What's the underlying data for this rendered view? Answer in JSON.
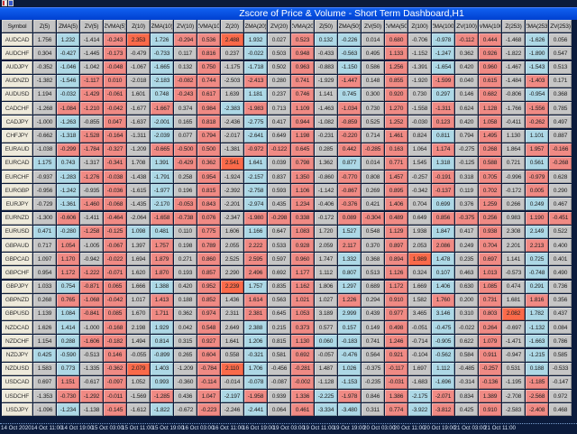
{
  "window": {
    "title": "Zscore of Price & Volume - Short Term Dashboard,H1"
  },
  "palette": {
    "g": "#c6c6c6",
    "b": "#add8e6",
    "r": "#f08a84",
    "o": "#fa6a4a"
  },
  "table": {
    "headers": [
      "Symbol",
      "Z(5)",
      "ZMA(5)",
      "ZV(5)",
      "ZVMA(5)",
      "Z(10)",
      "ZMA(10)",
      "ZV(10)",
      "ZVMA(10)",
      "Z(20)",
      "ZMA(20)",
      "ZV(20)",
      "ZVMA(20)",
      "Z(50)",
      "ZMA(50)",
      "ZV(50)",
      "ZVMA(50)",
      "Z(100)",
      "ZMA(100)",
      "ZV(100)",
      "ZVMA(100)",
      "Z(253)",
      "ZMA(253)",
      "ZV(253)"
    ],
    "rows": [
      {
        "symbol": "AUDCAD",
        "values": [
          "1.756",
          "1.232",
          "-1.414",
          "-0.243",
          "2.353",
          "1.726",
          "-0.294",
          "0.536",
          "2.488",
          "1.932",
          "0.027",
          "0.523",
          "0.132",
          "-0.226",
          "0.014",
          "0.680",
          "-0.706",
          "-0.978",
          "-0.112",
          "0.444",
          "-1.468",
          "-1.626",
          "0.056"
        ],
        "colors": "gbgrobrrobgrbbgrgbrrgbg"
      },
      {
        "symbol": "AUDCHF",
        "values": [
          "0.304",
          "-0.427",
          "-1.445",
          "-0.173",
          "-0.479",
          "-0.733",
          "0.117",
          "0.816",
          "0.237",
          "-0.022",
          "0.503",
          "0.948",
          "-0.433",
          "-0.563",
          "0.495",
          "1.133",
          "-1.152",
          "-1.247",
          "0.362",
          "0.926",
          "-1.822",
          "-1.890",
          "0.547"
        ],
        "colors": "gbgrgbgrgbgrgbgrgbgrgbg"
      },
      {
        "symbol": "AUDJPY",
        "values": [
          "-0.352",
          "-1.046",
          "-1.042",
          "-0.048",
          "-1.067",
          "-1.665",
          "0.132",
          "0.750",
          "-1.175",
          "-1.718",
          "0.502",
          "0.963",
          "-0.883",
          "-1.150",
          "0.586",
          "1.256",
          "-1.391",
          "-1.654",
          "0.420",
          "0.960",
          "-1.467",
          "-1.543",
          "0.513"
        ],
        "colors": "gbgrgbgrgbgrgbgrgbgrgbg"
      },
      {
        "symbol": "AUDNZD",
        "values": [
          "-1.382",
          "-1.546",
          "-1.117",
          "0.010",
          "-2.018",
          "-2.183",
          "-0.082",
          "0.744",
          "-2.503",
          "-2.413",
          "0.280",
          "0.741",
          "-1.929",
          "-1.447",
          "0.148",
          "0.855",
          "-1.920",
          "-1.599",
          "0.040",
          "0.615",
          "-1.484",
          "-1.403",
          "0.171"
        ],
        "colors": "gbrrgbrrgrgrgrgrgrgrgrg"
      },
      {
        "symbol": "AUDUSD",
        "values": [
          "1.194",
          "-0.032",
          "-1.429",
          "-0.061",
          "1.601",
          "0.748",
          "-0.243",
          "0.617",
          "1.639",
          "1.181",
          "0.237",
          "0.746",
          "1.141",
          "0.745",
          "0.300",
          "0.920",
          "0.730",
          "0.297",
          "0.146",
          "0.682",
          "-0.806",
          "-0.954",
          "0.368"
        ],
        "colors": "gbrrgbrrgbgrgbgrgbgrgbg"
      },
      {
        "symbol": "CADCHF",
        "values": [
          "-1.268",
          "-1.084",
          "-1.210",
          "-0.042",
          "-1.677",
          "-1.667",
          "0.374",
          "0.984",
          "-2.383",
          "-1.983",
          "0.713",
          "1.109",
          "-1.463",
          "-1.034",
          "0.730",
          "1.270",
          "-1.558",
          "-1.311",
          "0.624",
          "1.128",
          "-1.766",
          "-1.556",
          "0.785"
        ],
        "colors": "grrrgrgrbrgrgrgrgrgrgrg"
      },
      {
        "symbol": "CADJPY",
        "values": [
          "-1.000",
          "-1.263",
          "-0.855",
          "0.047",
          "-1.637",
          "-2.001",
          "0.165",
          "0.818",
          "-2.436",
          "-2.775",
          "0.417",
          "0.944",
          "-1.082",
          "-0.859",
          "0.525",
          "1.252",
          "-0.030",
          "0.123",
          "0.420",
          "1.058",
          "-0.411",
          "-0.262",
          "0.497"
        ],
        "colors": "gbgrgbgrgbgrgrgrgrgrgrg"
      },
      {
        "symbol": "CHFJPY",
        "values": [
          "-0.662",
          "-1.318",
          "-1.528",
          "-0.164",
          "-1.311",
          "-2.039",
          "0.077",
          "0.794",
          "-2.017",
          "-2.641",
          "0.649",
          "1.198",
          "-0.231",
          "-0.220",
          "0.714",
          "1.461",
          "0.824",
          "0.811",
          "0.794",
          "1.495",
          "1.130",
          "1.101",
          "0.887"
        ],
        "colors": "gbrrgbgrgbgrgrgrgbgrgbg"
      },
      {
        "symbol": "EURAUD",
        "values": [
          "-1.038",
          "-0.299",
          "-1.784",
          "-0.327",
          "-1.209",
          "-0.665",
          "-0.500",
          "0.500",
          "-1.381",
          "-0.972",
          "-0.122",
          "0.645",
          "0.285",
          "0.442",
          "-0.285",
          "0.163",
          "1.064",
          "1.174",
          "-0.275",
          "0.268",
          "1.864",
          "1.957",
          "-0.166"
        ],
        "colors": "grrrgrrrgrrrgrrrgrgrgrr"
      },
      {
        "symbol": "EURCAD",
        "values": [
          "1.175",
          "0.743",
          "-1.317",
          "-0.341",
          "1.708",
          "1.391",
          "-0.429",
          "0.362",
          "2.541",
          "1.641",
          "0.039",
          "0.798",
          "1.362",
          "0.877",
          "0.014",
          "0.771",
          "1.545",
          "1.318",
          "-0.125",
          "0.588",
          "0.721",
          "0.561",
          "-0.268"
        ],
        "colors": "bbgrgbrrobgrgbgrgbgrgbr"
      },
      {
        "symbol": "EURCHF",
        "values": [
          "-0.937",
          "-1.283",
          "-1.276",
          "-0.038",
          "-1.438",
          "-1.791",
          "0.258",
          "0.954",
          "-1.924",
          "-2.157",
          "0.837",
          "1.350",
          "-0.860",
          "-0.770",
          "0.808",
          "1.457",
          "-0.257",
          "-0.191",
          "0.318",
          "0.705",
          "-0.996",
          "-0.979",
          "0.628"
        ],
        "colors": "gbrrgbgrgbgrgrgrgrgrgrg"
      },
      {
        "symbol": "EURGBP",
        "values": [
          "-0.956",
          "-1.242",
          "-0.935",
          "-0.036",
          "-1.615",
          "-1.977",
          "0.196",
          "0.815",
          "-2.392",
          "-2.758",
          "0.593",
          "1.106",
          "-1.142",
          "-0.867",
          "0.269",
          "0.895",
          "-0.342",
          "-0.137",
          "0.119",
          "0.702",
          "-0.172",
          "0.005",
          "0.290"
        ],
        "colors": "gbgrgbgrgbgrgrgrgrgrgrg"
      },
      {
        "symbol": "EURJPY",
        "values": [
          "-0.729",
          "-1.361",
          "-1.460",
          "-0.068",
          "-1.435",
          "-2.170",
          "-0.053",
          "0.843",
          "-2.201",
          "-2.974",
          "0.435",
          "1.234",
          "-0.406",
          "-0.376",
          "0.421",
          "1.406",
          "0.704",
          "0.699",
          "0.376",
          "1.259",
          "0.266",
          "0.249",
          "0.467"
        ],
        "colors": "gbrrgbrrgbgrgrgrgbgrgbg"
      },
      {
        "symbol": "EURNZD",
        "values": [
          "-1.300",
          "-0.606",
          "-1.411",
          "-0.464",
          "-2.064",
          "-1.658",
          "-0.738",
          "0.076",
          "-2.347",
          "-1.980",
          "-0.298",
          "0.338",
          "-0.172",
          "0.089",
          "-0.304",
          "0.489",
          "0.649",
          "0.856",
          "-0.375",
          "0.256",
          "0.983",
          "1.190",
          "-0.451"
        ],
        "colors": "grgrgrrrgrrrgrrrgrrrgrr"
      },
      {
        "symbol": "EURUSD",
        "values": [
          "0.471",
          "-0.280",
          "-1.258",
          "-0.125",
          "1.098",
          "0.481",
          "0.110",
          "0.775",
          "1.606",
          "1.166",
          "0.647",
          "1.083",
          "1.720",
          "1.527",
          "0.548",
          "1.129",
          "1.938",
          "1.847",
          "0.417",
          "0.938",
          "2.308",
          "2.149",
          "0.522"
        ],
        "colors": "bbrrbbgrgbgrgbgrgbgrgbg"
      },
      {
        "symbol": "GBPAUD",
        "values": [
          "0.717",
          "1.054",
          "-1.005",
          "-0.067",
          "1.397",
          "1.757",
          "0.198",
          "0.789",
          "2.055",
          "2.222",
          "0.533",
          "0.928",
          "2.059",
          "2.117",
          "0.370",
          "0.897",
          "2.053",
          "2.086",
          "0.249",
          "0.704",
          "2.201",
          "2.213",
          "0.400"
        ],
        "colors": "grgrgrgrgrgrgrgrgrgrgrg"
      },
      {
        "symbol": "GBPCAD",
        "values": [
          "1.097",
          "1.170",
          "-0.942",
          "-0.022",
          "1.694",
          "1.879",
          "0.271",
          "0.860",
          "2.525",
          "2.595",
          "0.597",
          "0.960",
          "1.747",
          "1.332",
          "0.368",
          "0.894",
          "1.989",
          "1.478",
          "0.235",
          "0.697",
          "1.141",
          "0.725",
          "0.401"
        ],
        "colors": "grgrgrgrgrgrgbgrobgrgbg"
      },
      {
        "symbol": "GBPCHF",
        "values": [
          "0.954",
          "1.172",
          "-1.222",
          "-0.071",
          "1.620",
          "1.870",
          "0.193",
          "0.857",
          "2.290",
          "2.496",
          "0.692",
          "1.177",
          "1.112",
          "0.807",
          "0.513",
          "1.126",
          "0.324",
          "0.107",
          "0.463",
          "1.013",
          "-0.573",
          "-0.748",
          "0.490"
        ],
        "colors": "grrrgrgrgrgrgbgrgbgrgbg"
      },
      {
        "symbol": "GBPJPY",
        "values": [
          "1.033",
          "0.754",
          "-0.871",
          "0.065",
          "1.666",
          "1.388",
          "0.420",
          "0.952",
          "2.239",
          "1.757",
          "0.835",
          "1.162",
          "1.806",
          "1.297",
          "0.689",
          "1.172",
          "1.669",
          "1.406",
          "0.630",
          "1.085",
          "0.474",
          "0.291",
          "0.736"
        ],
        "colors": "gbrrgbgrobgrgbgrgbgrgbg"
      },
      {
        "symbol": "GBPNZD",
        "values": [
          "0.268",
          "0.765",
          "-1.068",
          "-0.042",
          "1.017",
          "1.413",
          "0.188",
          "0.852",
          "1.436",
          "1.614",
          "0.563",
          "1.021",
          "1.027",
          "1.226",
          "0.294",
          "0.910",
          "1.582",
          "1.760",
          "0.200",
          "0.731",
          "1.681",
          "1.816",
          "0.356"
        ],
        "colors": "grrrgrgrgrgrgrgrgrgrgrg"
      },
      {
        "symbol": "GBPUSD",
        "values": [
          "1.139",
          "1.084",
          "-0.841",
          "0.085",
          "1.670",
          "1.711",
          "0.362",
          "0.974",
          "2.311",
          "2.381",
          "0.645",
          "1.053",
          "3.189",
          "2.999",
          "0.439",
          "0.977",
          "3.465",
          "3.146",
          "0.310",
          "0.803",
          "2.082",
          "1.782",
          "0.437"
        ],
        "colors": "gbrrgrgrgrgrgbgrgbgrobg"
      },
      {
        "symbol": "NZDCAD",
        "values": [
          "1.626",
          "1.414",
          "-1.000",
          "-0.168",
          "2.198",
          "1.929",
          "0.042",
          "0.548",
          "2.649",
          "2.388",
          "0.215",
          "0.373",
          "0.577",
          "0.157",
          "0.149",
          "0.498",
          "-0.051",
          "-0.475",
          "-0.022",
          "0.264",
          "-0.697",
          "-1.132",
          "0.084"
        ],
        "colors": "gbgrgbgrgbgrgbgrgbgrgbg"
      },
      {
        "symbol": "NZDCHF",
        "values": [
          "1.154",
          "0.288",
          "-1.606",
          "-0.182",
          "1.494",
          "0.814",
          "0.315",
          "0.927",
          "1.641",
          "1.206",
          "0.815",
          "1.130",
          "0.060",
          "-0.183",
          "0.741",
          "1.246",
          "-0.714",
          "-0.905",
          "0.622",
          "1.079",
          "-1.471",
          "-1.663",
          "0.786"
        ],
        "colors": "gbrrgbgrgbgrbbgrgbgrgbg"
      },
      {
        "symbol": "NZDJPY",
        "values": [
          "0.425",
          "-0.590",
          "-0.513",
          "0.146",
          "-0.055",
          "-0.899",
          "0.265",
          "0.604",
          "0.558",
          "-0.321",
          "0.581",
          "0.692",
          "-0.057",
          "-0.476",
          "0.564",
          "0.921",
          "-0.104",
          "-0.562",
          "0.584",
          "0.911",
          "-0.947",
          "-1.215",
          "0.585"
        ],
        "colors": "bbgrgbgrgbgrgbgrgbgrgbg"
      },
      {
        "symbol": "NZDUSD",
        "values": [
          "1.583",
          "0.773",
          "-1.335",
          "-0.362",
          "2.079",
          "1.403",
          "-1.209",
          "-0.784",
          "2.110",
          "1.706",
          "-0.456",
          "-0.281",
          "1.487",
          "1.026",
          "-0.375",
          "-0.117",
          "1.697",
          "1.112",
          "-0.485",
          "-0.257",
          "0.531",
          "0.188",
          "-0.533"
        ],
        "colors": "gbgrobgrobgrgbgrgbgrgbg"
      },
      {
        "symbol": "USDCAD",
        "values": [
          "0.697",
          "1.151",
          "-0.617",
          "-0.097",
          "1.052",
          "0.993",
          "-0.360",
          "-0.114",
          "-0.014",
          "-0.078",
          "-0.087",
          "-0.002",
          "-1.128",
          "-1.153",
          "-0.235",
          "-0.031",
          "-1.683",
          "-1.696",
          "-0.314",
          "-0.136",
          "-1.195",
          "-1.185",
          "-0.147"
        ],
        "colors": "grgrgbgrgbgrgbgrgbgrgrg"
      },
      {
        "symbol": "USDCHF",
        "values": [
          "-1.353",
          "-0.730",
          "-1.292",
          "-0.011",
          "-1.569",
          "-1.285",
          "0.436",
          "1.047",
          "-2.197",
          "-1.958",
          "0.939",
          "1.336",
          "-2.225",
          "-1.978",
          "0.846",
          "1.386",
          "-2.175",
          "-2.071",
          "0.834",
          "1.389",
          "-2.708",
          "-2.568",
          "0.972"
        ],
        "colors": "grrrgrgrbrgrbrgrbrgrgrg"
      },
      {
        "symbol": "USDJPY",
        "values": [
          "-1.096",
          "-1.234",
          "-1.138",
          "-0.145",
          "-1.612",
          "-1.822",
          "-0.672",
          "-0.223",
          "-2.246",
          "-2.441",
          "0.064",
          "0.461",
          "-3.334",
          "-3.480",
          "0.311",
          "0.774",
          "-3.922",
          "-3.812",
          "0.425",
          "0.910",
          "-2.583",
          "-2.408",
          "0.468"
        ],
        "colors": "gbgrgbgrgbgrbbgrbrgrgrg"
      }
    ]
  },
  "time_axis": [
    "14 Oct 2020",
    "14 Oct 11:00",
    "14 Oct 19:00",
    "15 Oct 03:00",
    "15 Oct 11:00",
    "15 Oct 19:00",
    "16 Oct 03:00",
    "16 Oct 11:00",
    "16 Oct 19:00",
    "19 Oct 03:00",
    "19 Oct 11:00",
    "19 Oct 19:00",
    "20 Oct 03:00",
    "20 Oct 11:00",
    "20 Oct 19:00",
    "21 Oct 03:00",
    "21 Oct 11:00"
  ]
}
